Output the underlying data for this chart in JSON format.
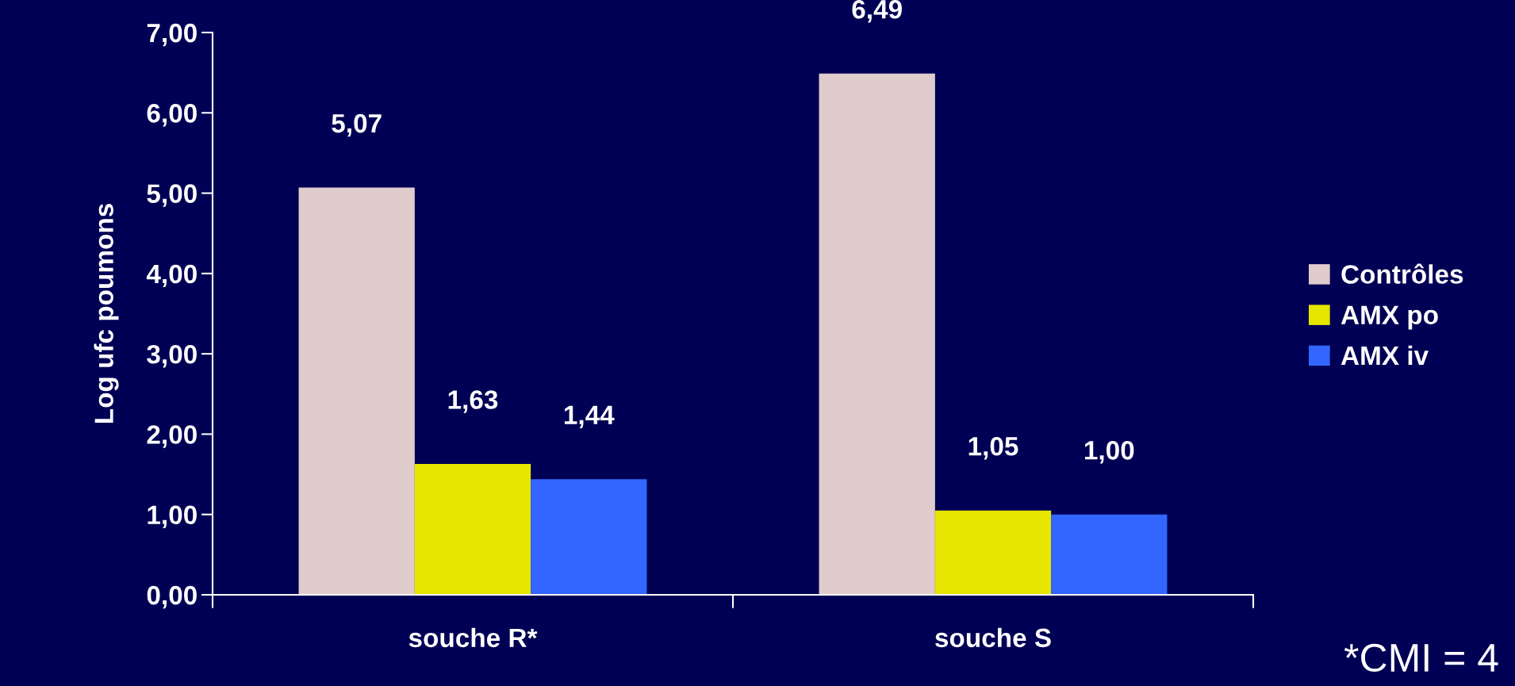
{
  "chart_data": {
    "type": "bar",
    "ylabel": "Log ufc poumons",
    "categories": [
      "souche R*",
      "souche S"
    ],
    "series": [
      {
        "name": "Contrôles",
        "color": "#e0cccc",
        "values": [
          5.07,
          6.49
        ],
        "value_labels": [
          "5,07",
          "6,49"
        ]
      },
      {
        "name": "AMX po",
        "color": "#e6e600",
        "values": [
          1.63,
          1.05
        ],
        "value_labels": [
          "1,63",
          "1,05"
        ]
      },
      {
        "name": "AMX iv",
        "color": "#3366ff",
        "values": [
          1.44,
          1.0
        ],
        "value_labels": [
          "1,44",
          "1,00"
        ]
      }
    ],
    "ylim": [
      0,
      7
    ],
    "yticks": [
      {
        "value": 0,
        "label": "0,00"
      },
      {
        "value": 1,
        "label": "1,00"
      },
      {
        "value": 2,
        "label": "2,00"
      },
      {
        "value": 3,
        "label": "3,00"
      },
      {
        "value": 4,
        "label": "4,00"
      },
      {
        "value": 5,
        "label": "5,00"
      },
      {
        "value": 6,
        "label": "6,00"
      },
      {
        "value": 7,
        "label": "7,00"
      }
    ],
    "grid": false,
    "legend": "right",
    "annotations": [
      "*CMI = 4"
    ]
  }
}
